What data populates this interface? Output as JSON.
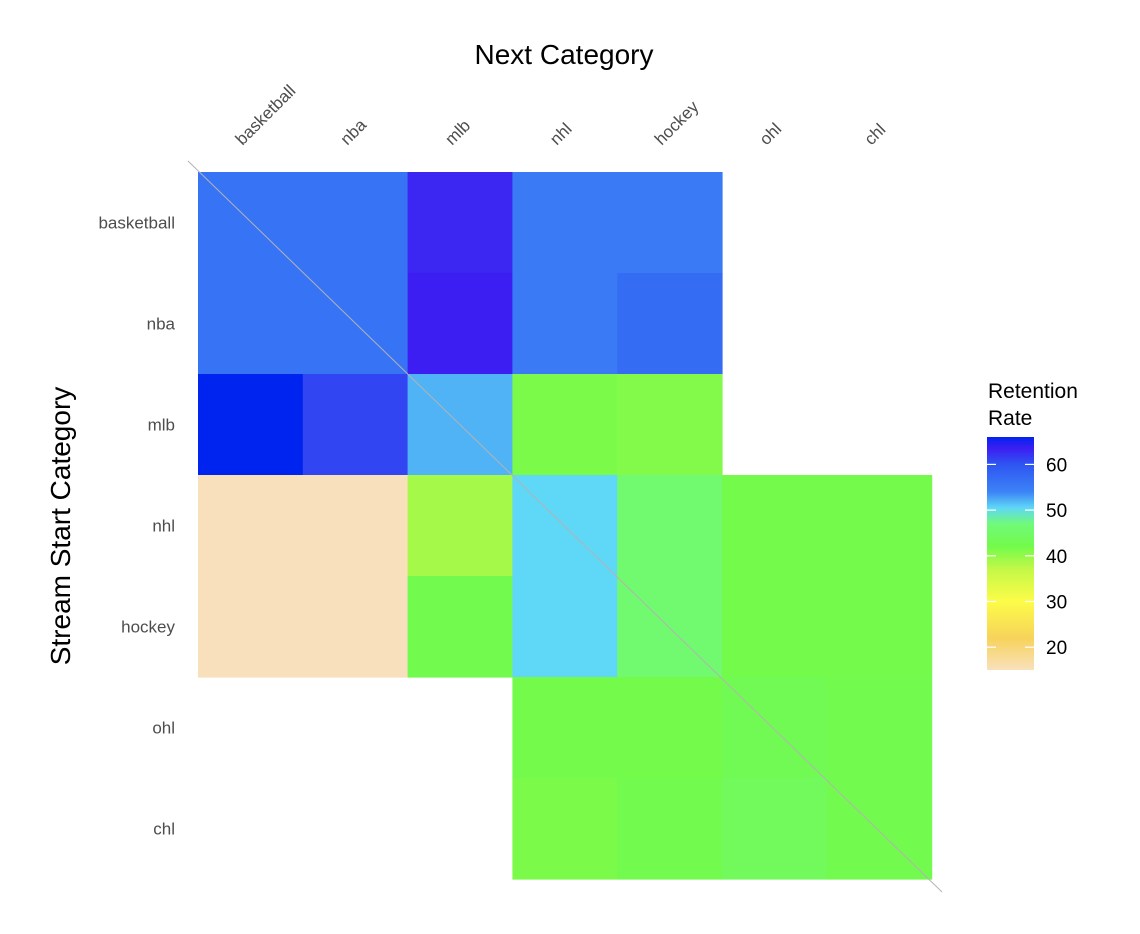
{
  "chart_data": {
    "type": "heatmap",
    "xlabel": "Next Category",
    "ylabel": "Stream Start Category",
    "x_categories": [
      "basketball",
      "nba",
      "mlb",
      "nhl",
      "hockey",
      "ohl",
      "chl"
    ],
    "y_categories": [
      "basketball",
      "nba",
      "mlb",
      "nhl",
      "hockey",
      "ohl",
      "chl"
    ],
    "cells": [
      {
        "row": "basketball",
        "col": "basketball",
        "value": 56
      },
      {
        "row": "basketball",
        "col": "nba",
        "value": 56
      },
      {
        "row": "basketball",
        "col": "mlb",
        "value": 63
      },
      {
        "row": "basketball",
        "col": "nhl",
        "value": 55
      },
      {
        "row": "basketball",
        "col": "hockey",
        "value": 55
      },
      {
        "row": "nba",
        "col": "basketball",
        "value": 56
      },
      {
        "row": "nba",
        "col": "nba",
        "value": 56
      },
      {
        "row": "nba",
        "col": "mlb",
        "value": 63.5
      },
      {
        "row": "nba",
        "col": "nhl",
        "value": 55
      },
      {
        "row": "nba",
        "col": "hockey",
        "value": 57
      },
      {
        "row": "mlb",
        "col": "basketball",
        "value": 66
      },
      {
        "row": "mlb",
        "col": "nba",
        "value": 61
      },
      {
        "row": "mlb",
        "col": "mlb",
        "value": 52
      },
      {
        "row": "mlb",
        "col": "nhl",
        "value": 41.5
      },
      {
        "row": "mlb",
        "col": "hockey",
        "value": 41
      },
      {
        "row": "nhl",
        "col": "basketball",
        "value": 15
      },
      {
        "row": "nhl",
        "col": "nba",
        "value": 15
      },
      {
        "row": "nhl",
        "col": "mlb",
        "value": 39
      },
      {
        "row": "nhl",
        "col": "nhl",
        "value": 50.5
      },
      {
        "row": "nhl",
        "col": "hockey",
        "value": 46
      },
      {
        "row": "nhl",
        "col": "ohl",
        "value": 42
      },
      {
        "row": "nhl",
        "col": "chl",
        "value": 42
      },
      {
        "row": "hockey",
        "col": "basketball",
        "value": 15
      },
      {
        "row": "hockey",
        "col": "nba",
        "value": 15
      },
      {
        "row": "hockey",
        "col": "mlb",
        "value": 42.5
      },
      {
        "row": "hockey",
        "col": "nhl",
        "value": 50.5
      },
      {
        "row": "hockey",
        "col": "hockey",
        "value": 46
      },
      {
        "row": "hockey",
        "col": "ohl",
        "value": 42
      },
      {
        "row": "hockey",
        "col": "chl",
        "value": 42
      },
      {
        "row": "ohl",
        "col": "nhl",
        "value": 42
      },
      {
        "row": "ohl",
        "col": "hockey",
        "value": 42
      },
      {
        "row": "ohl",
        "col": "ohl",
        "value": 43
      },
      {
        "row": "ohl",
        "col": "chl",
        "value": 42.5
      },
      {
        "row": "chl",
        "col": "nhl",
        "value": 41.5
      },
      {
        "row": "chl",
        "col": "hockey",
        "value": 42.5
      },
      {
        "row": "chl",
        "col": "ohl",
        "value": 44
      },
      {
        "row": "chl",
        "col": "chl",
        "value": 42.5
      }
    ],
    "legend": {
      "title_line1": "Retention",
      "title_line2": "Rate",
      "position": "right",
      "breaks": [
        20,
        30,
        40,
        50,
        60
      ],
      "range": [
        15,
        66
      ],
      "colors": [
        {
          "value": 15,
          "color": "#f8e0bc"
        },
        {
          "value": 22,
          "color": "#f7d35a"
        },
        {
          "value": 30,
          "color": "#fcfc48"
        },
        {
          "value": 37,
          "color": "#c5f848"
        },
        {
          "value": 42,
          "color": "#73fa4a"
        },
        {
          "value": 47,
          "color": "#70fa7a"
        },
        {
          "value": 50.5,
          "color": "#5fd7f6"
        },
        {
          "value": 54,
          "color": "#3c83f6"
        },
        {
          "value": 60,
          "color": "#2e55f2"
        },
        {
          "value": 63.5,
          "color": "#3d1ef2"
        },
        {
          "value": 66,
          "color": "#0024f0"
        }
      ]
    },
    "diagonal_reference_line": true,
    "grid": false
  }
}
